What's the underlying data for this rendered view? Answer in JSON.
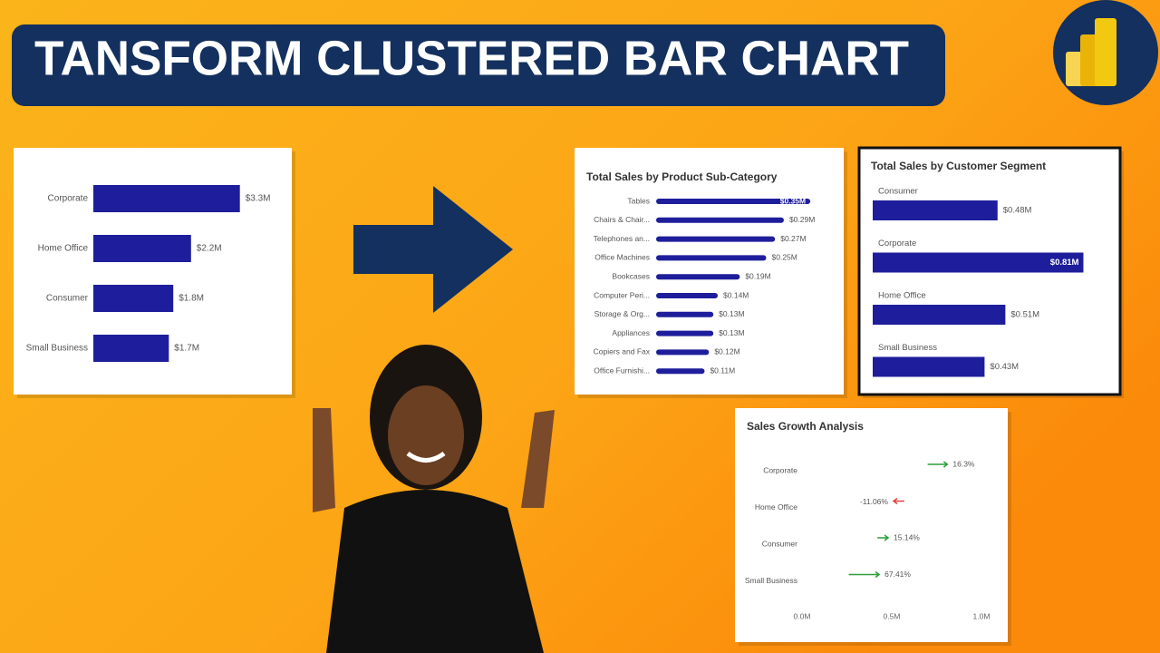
{
  "title": "TANSFORM CLUSTERED BAR CHART",
  "chart_data": [
    {
      "type": "bar",
      "orientation": "horizontal",
      "color": "#1e1e9c",
      "categories": [
        "Corporate",
        "Home Office",
        "Consumer",
        "Small Business"
      ],
      "values": [
        3300000,
        2200000,
        1800000,
        1700000
      ],
      "value_labels": [
        "$3.3M",
        "$2.2M",
        "$1.8M",
        "$1.7M"
      ]
    },
    {
      "type": "bar",
      "orientation": "horizontal",
      "color": "#1e1e9c",
      "title": "Total Sales by Product Sub-Category",
      "categories": [
        "Tables",
        "Chairs & Chair...",
        "Telephones an...",
        "Office Machines",
        "Bookcases",
        "Computer Peri...",
        "Storage & Org...",
        "Appliances",
        "Copiers and Fax",
        "Office Furnishi..."
      ],
      "values": [
        350000,
        290000,
        270000,
        250000,
        190000,
        140000,
        130000,
        130000,
        120000,
        110000
      ],
      "value_labels": [
        "$0.35M",
        "$0.29M",
        "$0.27M",
        "$0.25M",
        "$0.19M",
        "$0.14M",
        "$0.13M",
        "$0.13M",
        "$0.12M",
        "$0.11M"
      ]
    },
    {
      "type": "bar",
      "orientation": "horizontal",
      "color": "#1e1e9c",
      "title": "Total Sales by Customer Segment",
      "categories": [
        "Consumer",
        "Corporate",
        "Home Office",
        "Small Business"
      ],
      "values": [
        480000,
        810000,
        510000,
        430000
      ],
      "value_labels": [
        "$0.48M",
        "$0.81M",
        "$0.51M",
        "$0.43M"
      ]
    },
    {
      "type": "arrow",
      "title": "Sales Growth Analysis",
      "categories": [
        "Corporate",
        "Home Office",
        "Consumer",
        "Small Business"
      ],
      "start": [
        0.7,
        0.57,
        0.42,
        0.26
      ],
      "end": [
        0.81,
        0.51,
        0.48,
        0.43
      ],
      "values": [
        16.3,
        -11.06,
        15.14,
        67.41
      ],
      "value_labels": [
        "16.3%",
        "-11.06%",
        "15.14%",
        "67.41%"
      ],
      "up_color": "#2e9e3a",
      "down_color": "#e0443c",
      "xlim": [
        0,
        1
      ],
      "xticks": [
        {
          "value": 0,
          "label": "0.0M"
        },
        {
          "value": 0.5,
          "label": "0.5M"
        },
        {
          "value": 1,
          "label": "1.0M"
        }
      ]
    }
  ]
}
